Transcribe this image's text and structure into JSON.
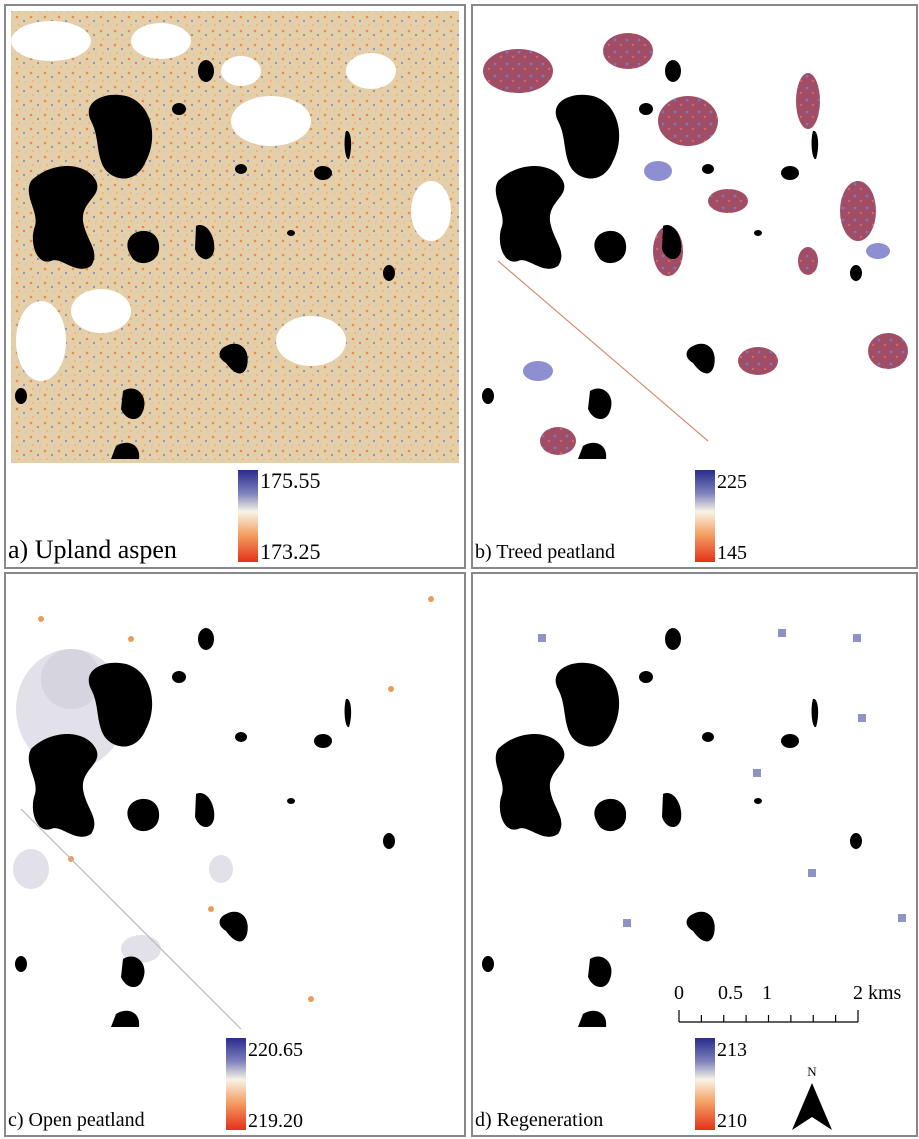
{
  "panels": [
    {
      "label": "a) Upland aspen",
      "legend_max": "175.55",
      "legend_min": "173.25"
    },
    {
      "label": "b) Treed peatland",
      "legend_max": "225",
      "legend_min": "145"
    },
    {
      "label": "c) Open peatland",
      "legend_max": "220.65",
      "legend_min": "219.20"
    },
    {
      "label": "d) Regeneration",
      "legend_max": "213",
      "legend_min": "210"
    }
  ],
  "scale_bar": {
    "labels": [
      "0",
      "0.5",
      "1",
      "2 kms"
    ]
  },
  "north_arrow": {
    "label": "N"
  }
}
